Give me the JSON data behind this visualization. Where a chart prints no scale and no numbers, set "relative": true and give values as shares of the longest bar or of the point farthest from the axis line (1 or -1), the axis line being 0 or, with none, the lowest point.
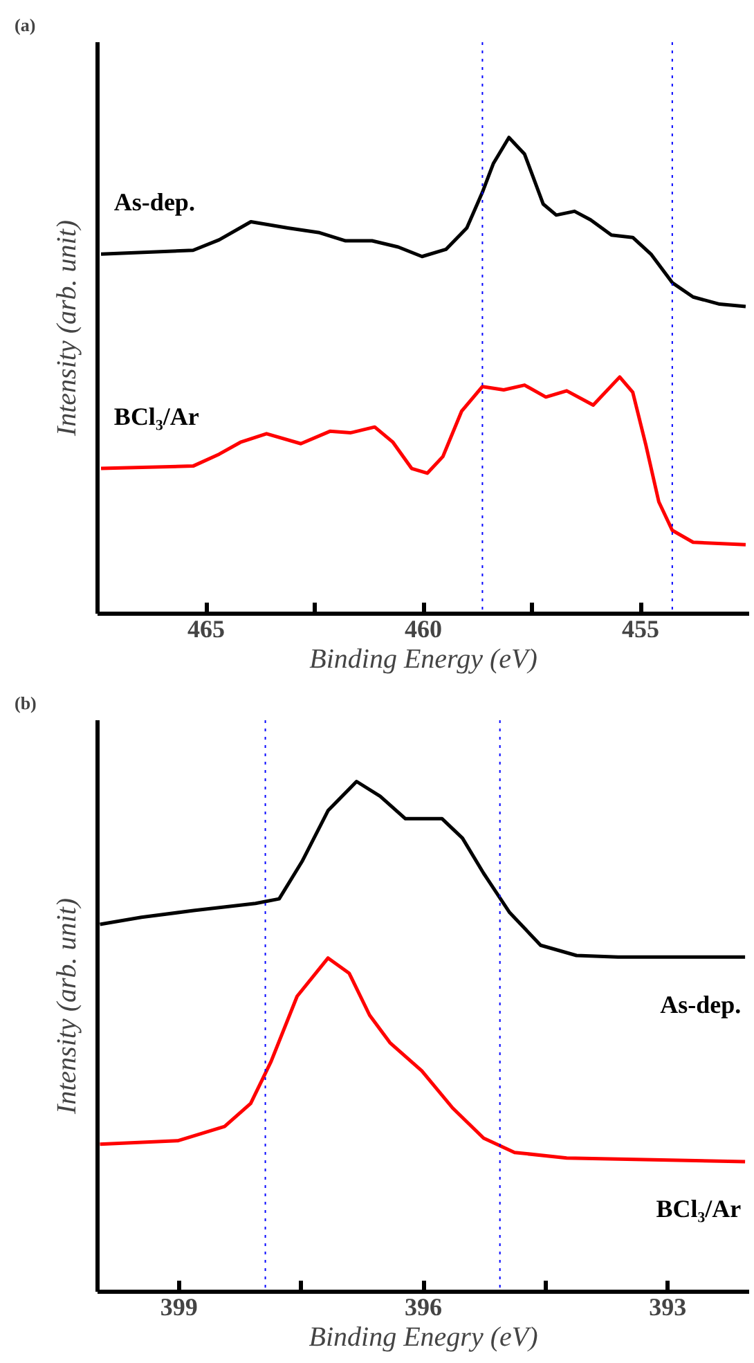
{
  "chart_data": [
    {
      "type": "line",
      "title": "(a)",
      "xlabel": "Binding Energy (eV)",
      "ylabel": "Intensity (arb. unit)",
      "relative": true,
      "xlim": [
        467.5,
        452.5
      ],
      "xticks": [
        465,
        {
          "value": 462.5,
          "label": null
        },
        460,
        {
          "value": 457.5,
          "label": null
        },
        455
      ],
      "x": [
        467.42,
        465.3,
        464.7,
        463.97,
        463.12,
        462.39,
        461.79,
        461.18,
        460.58,
        460.03,
        459.48,
        459.0,
        458.64,
        458.39,
        458.03,
        457.67,
        457.24,
        456.94,
        456.52,
        456.15,
        455.67,
        455.18,
        454.76,
        454.27,
        453.79,
        453.18,
        452.58
      ],
      "series": [
        {
          "name": "As-dep.",
          "color": "#000000",
          "values": [
            0.755,
            0.763,
            0.785,
            0.823,
            0.81,
            0.8,
            0.783,
            0.783,
            0.77,
            0.75,
            0.765,
            0.81,
            0.885,
            0.945,
            1.0,
            0.965,
            0.86,
            0.837,
            0.845,
            0.827,
            0.795,
            0.79,
            0.755,
            0.695,
            0.665,
            0.65,
            0.645
          ]
        },
        {
          "name": "BCl₃/Ar",
          "color": "#ff0000",
          "x": [
            467.42,
            465.3,
            464.7,
            464.21,
            463.61,
            462.82,
            462.15,
            461.67,
            461.12,
            460.7,
            460.27,
            459.91,
            459.55,
            459.12,
            458.64,
            458.15,
            457.67,
            457.18,
            456.7,
            456.09,
            455.48,
            455.18,
            454.88,
            454.58,
            454.27,
            453.79,
            452.58
          ],
          "values": [
            0.305,
            0.31,
            0.335,
            0.36,
            0.378,
            0.357,
            0.383,
            0.38,
            0.392,
            0.36,
            0.305,
            0.295,
            0.33,
            0.425,
            0.477,
            0.47,
            0.48,
            0.455,
            0.468,
            0.438,
            0.497,
            0.465,
            0.355,
            0.235,
            0.175,
            0.15,
            0.145
          ]
        }
      ],
      "ref_lines": [
        {
          "axis": "x",
          "value": 458.64,
          "color": "#0000ff",
          "line_style": "dotted"
        },
        {
          "axis": "x",
          "value": 454.27,
          "color": "#0000ff",
          "line_style": "dotted"
        }
      ],
      "grid": false,
      "legend": false,
      "line_style": "solid",
      "marker": "none"
    },
    {
      "type": "line",
      "title": "(b)",
      "xlabel": "Binding Enegry (eV)",
      "ylabel": "Intensity (arb. unit)",
      "relative": true,
      "xlim": [
        400,
        392
      ],
      "xticks": [
        399,
        {
          "value": 397.5,
          "label": null
        },
        396,
        {
          "value": 394.5,
          "label": null
        },
        393
      ],
      "x": [
        399.97,
        399.46,
        398.82,
        398.06,
        397.77,
        397.49,
        397.17,
        396.82,
        396.53,
        396.22,
        396.02,
        395.77,
        395.52,
        395.26,
        394.94,
        394.56,
        394.12,
        393.61,
        392.05
      ],
      "series": [
        {
          "name": "As-dep.",
          "color": "#000000",
          "values": [
            0.72,
            0.734,
            0.747,
            0.761,
            0.77,
            0.843,
            0.943,
            1.0,
            0.971,
            0.927,
            0.927,
            0.927,
            0.889,
            0.82,
            0.743,
            0.679,
            0.659,
            0.656,
            0.656
          ]
        },
        {
          "name": "BCl₃/Ar",
          "color": "#ff0000",
          "x": [
            399.97,
            399.01,
            398.44,
            398.12,
            397.87,
            397.55,
            397.17,
            396.91,
            396.66,
            396.41,
            396.02,
            395.64,
            395.26,
            394.88,
            394.24,
            392.05
          ],
          "values": [
            0.289,
            0.296,
            0.324,
            0.369,
            0.451,
            0.579,
            0.654,
            0.624,
            0.542,
            0.488,
            0.433,
            0.36,
            0.301,
            0.273,
            0.262,
            0.255
          ]
        }
      ],
      "ref_lines": [
        {
          "axis": "x",
          "value": 397.94,
          "color": "#0000ff",
          "line_style": "dotted"
        },
        {
          "axis": "x",
          "value": 395.06,
          "color": "#0000ff",
          "line_style": "dotted"
        }
      ],
      "grid": false,
      "legend": false,
      "line_style": "solid",
      "marker": "none"
    }
  ]
}
